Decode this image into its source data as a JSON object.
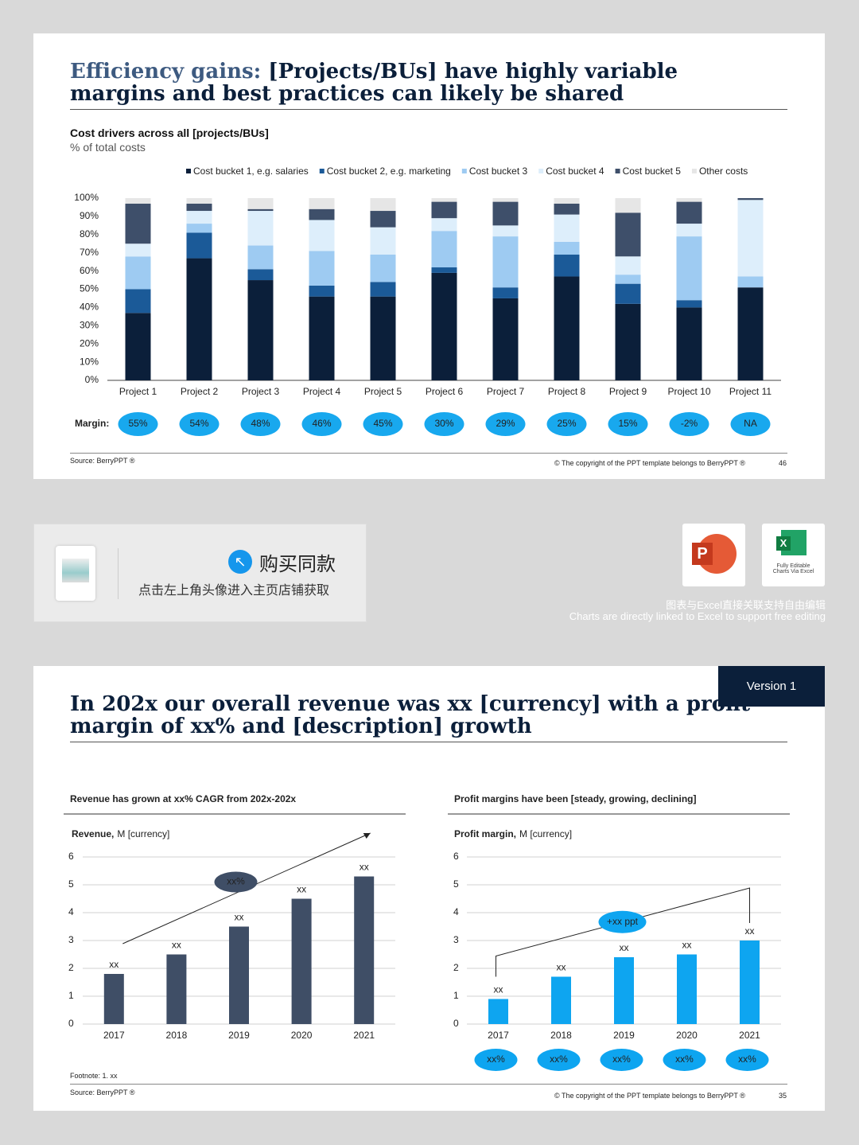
{
  "slides": [
    {
      "title_lead": "Efficiency gains:",
      "title": "[Projects/BUs] have highly variable margins and best practices can likely be shared",
      "source": "Source: BerryPPT ®",
      "copyright": "© The copyright of the PPT template belongs to BerryPPT ®",
      "page": "46"
    },
    {
      "title": "In 202x our overall revenue was xx [currency] with a profit margin of xx% and [description] growth",
      "version": "Version 1",
      "footnote": "Footnote: 1. xx",
      "source": "Source: BerryPPT ®",
      "copyright": "© The copyright of the PPT template belongs to BerryPPT ®",
      "page": "35"
    }
  ],
  "banner": {
    "button": "购买同款",
    "text": "点击左上角头像进入主页店铺获取",
    "icon_label": "Fully Editable Charts Via Excel",
    "caption_cn": "图表与Excel直接关联支持自由编辑",
    "caption_en": "Charts are directly linked to Excel to support free editing"
  },
  "chart_data": [
    {
      "type": "bar",
      "stacked": true,
      "title": "Cost drivers across all [projects/BUs]",
      "subtitle": "% of total costs",
      "categories": [
        "Project 1",
        "Project 2",
        "Project 3",
        "Project 4",
        "Project 5",
        "Project 6",
        "Project 7",
        "Project 8",
        "Project 9",
        "Project 10",
        "Project 11"
      ],
      "series": [
        {
          "name": "Cost bucket 1, e.g. salaries",
          "color": "#0b1f3a",
          "values": [
            37,
            67,
            55,
            46,
            46,
            59,
            45,
            57,
            42,
            40,
            51
          ]
        },
        {
          "name": "Cost bucket 2, e.g. marketing",
          "color": "#1b5a98",
          "values": [
            13,
            14,
            6,
            6,
            8,
            3,
            6,
            12,
            11,
            4,
            0
          ]
        },
        {
          "name": "Cost bucket 3",
          "color": "#9ecbf2",
          "values": [
            18,
            5,
            13,
            19,
            15,
            20,
            28,
            7,
            5,
            35,
            6
          ]
        },
        {
          "name": "Cost bucket 4",
          "color": "#ddeefb",
          "values": [
            7,
            7,
            19,
            17,
            15,
            7,
            6,
            15,
            10,
            7,
            42
          ]
        },
        {
          "name": "Cost bucket 5",
          "color": "#3e4f6a",
          "values": [
            22,
            4,
            1,
            6,
            9,
            9,
            13,
            6,
            24,
            12,
            1
          ]
        },
        {
          "name": "Other costs",
          "color": "#e6e6e6",
          "values": [
            3,
            3,
            6,
            6,
            7,
            2,
            2,
            3,
            8,
            2,
            0
          ]
        }
      ],
      "ylim": [
        0,
        100
      ],
      "yticks": [
        {
          "value": 0,
          "label": "0%"
        },
        {
          "value": 10,
          "label": "10%"
        },
        {
          "value": 20,
          "label": "20%"
        },
        {
          "value": 30,
          "label": "30%"
        },
        {
          "value": 40,
          "label": "40%"
        },
        {
          "value": 50,
          "label": "50%"
        },
        {
          "value": 60,
          "label": "60%"
        },
        {
          "value": 70,
          "label": "70%"
        },
        {
          "value": 80,
          "label": "80%"
        },
        {
          "value": 90,
          "label": "90%"
        },
        {
          "value": 100,
          "label": "100%"
        }
      ],
      "margin_label": "Margin:",
      "margins": [
        "55%",
        "54%",
        "48%",
        "46%",
        "45%",
        "30%",
        "29%",
        "25%",
        "15%",
        "-2%",
        "NA"
      ],
      "margin_color": "#18a8ee"
    },
    {
      "type": "bar",
      "title": "Revenue has grown at xx% CAGR from 202x-202x",
      "axis_label": "Revenue,",
      "axis_unit": "M [currency]",
      "categories": [
        "2017",
        "2018",
        "2019",
        "2020",
        "2021"
      ],
      "values": [
        1.8,
        2.5,
        3.5,
        4.5,
        5.3
      ],
      "value_labels": [
        "xx",
        "xx",
        "xx",
        "xx",
        "xx"
      ],
      "color": "#3f4e66",
      "ylim": [
        0,
        6
      ],
      "yticks": [
        0,
        1,
        2,
        3,
        4,
        5,
        6
      ],
      "grid": true,
      "annotation": "xx%"
    },
    {
      "type": "bar",
      "title": "Profit margins have been [steady, growing, declining]",
      "axis_label": "Profit margin,",
      "axis_unit": "M [currency]",
      "categories": [
        "2017",
        "2018",
        "2019",
        "2020",
        "2021"
      ],
      "values": [
        0.9,
        1.7,
        2.4,
        2.5,
        3.0
      ],
      "value_labels": [
        "xx",
        "xx",
        "xx",
        "xx",
        "xx"
      ],
      "color": "#0ea5f0",
      "ylim": [
        0,
        6
      ],
      "yticks": [
        0,
        1,
        2,
        3,
        4,
        5,
        6
      ],
      "grid": true,
      "annotation": "+xx ppt",
      "bottom_labels": [
        "xx%",
        "xx%",
        "xx%",
        "xx%",
        "xx%"
      ]
    }
  ]
}
